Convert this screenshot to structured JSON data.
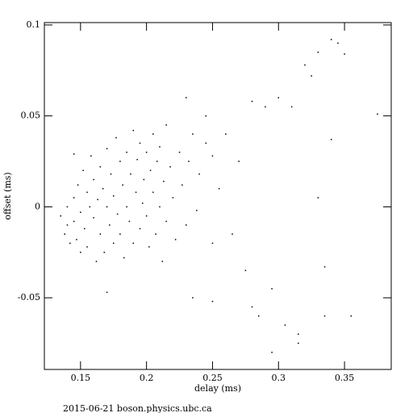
{
  "chart_data": {
    "type": "scatter",
    "xlabel": "delay (ms)",
    "ylabel": "offset (ms)",
    "footer": "2015-06-21 boson.physics.ubc.ca",
    "xlim": [
      0.1226,
      0.3854
    ],
    "ylim": [
      -0.0894,
      0.1013
    ],
    "xticks": [
      0.15,
      0.2,
      0.25,
      0.3,
      0.35
    ],
    "yticks": [
      -0.05,
      0,
      0.05,
      0.1
    ],
    "color": "#000000",
    "series": [
      {
        "x": [
          0.135,
          0.138,
          0.14,
          0.14,
          0.142,
          0.145,
          0.145,
          0.147,
          0.148,
          0.15,
          0.15,
          0.152,
          0.153,
          0.155,
          0.155,
          0.157,
          0.158,
          0.16,
          0.16,
          0.162,
          0.163,
          0.165,
          0.165,
          0.167,
          0.168,
          0.17,
          0.17,
          0.172,
          0.173,
          0.175,
          0.175,
          0.177,
          0.178,
          0.18,
          0.18,
          0.182,
          0.183,
          0.185,
          0.185,
          0.187,
          0.188,
          0.19,
          0.19,
          0.192,
          0.193,
          0.195,
          0.195,
          0.197,
          0.198,
          0.2,
          0.2,
          0.202,
          0.203,
          0.205,
          0.205,
          0.207,
          0.208,
          0.21,
          0.21,
          0.212,
          0.213,
          0.215,
          0.215,
          0.218,
          0.22,
          0.222,
          0.225,
          0.227,
          0.23,
          0.232,
          0.235,
          0.238,
          0.24,
          0.245,
          0.25,
          0.25,
          0.255,
          0.26,
          0.265,
          0.27,
          0.275,
          0.28,
          0.285,
          0.29,
          0.295,
          0.3,
          0.305,
          0.31,
          0.315,
          0.32,
          0.325,
          0.33,
          0.335,
          0.34,
          0.345,
          0.35,
          0.355,
          0.375,
          0.34,
          0.33,
          0.335,
          0.295,
          0.315,
          0.235,
          0.25,
          0.28,
          0.17,
          0.145,
          0.245,
          0.23
        ],
        "values": [
          -0.005,
          -0.015,
          0,
          -0.01,
          -0.02,
          0.005,
          -0.008,
          -0.018,
          0.012,
          -0.003,
          -0.025,
          0.02,
          -0.012,
          0.008,
          -0.022,
          0,
          0.028,
          -0.006,
          0.015,
          -0.03,
          0.004,
          0.022,
          -0.015,
          0.01,
          -0.025,
          0.032,
          0,
          -0.01,
          0.018,
          -0.02,
          0.006,
          0.038,
          -0.004,
          0.025,
          -0.015,
          0.012,
          -0.028,
          0.03,
          0,
          -0.008,
          0.018,
          0.042,
          -0.02,
          0.008,
          0.026,
          -0.012,
          0.035,
          0.002,
          0.015,
          -0.005,
          0.03,
          -0.022,
          0.02,
          0.04,
          0.008,
          -0.015,
          0.025,
          0,
          0.033,
          -0.03,
          0.014,
          0.045,
          -0.008,
          0.022,
          0.005,
          -0.018,
          0.03,
          0.012,
          -0.01,
          0.025,
          0.04,
          -0.002,
          0.018,
          0.035,
          -0.02,
          0.028,
          0.01,
          0.04,
          -0.015,
          0.025,
          -0.035,
          0.058,
          -0.06,
          0.055,
          -0.045,
          0.06,
          -0.065,
          0.055,
          -0.07,
          0.078,
          0.072,
          0.085,
          -0.06,
          0.092,
          0.09,
          0.084,
          -0.06,
          0.051,
          0.037,
          0.005,
          -0.033,
          -0.08,
          -0.075,
          -0.05,
          -0.052,
          -0.055,
          -0.047,
          0.029,
          0.05,
          0.06
        ]
      }
    ]
  }
}
